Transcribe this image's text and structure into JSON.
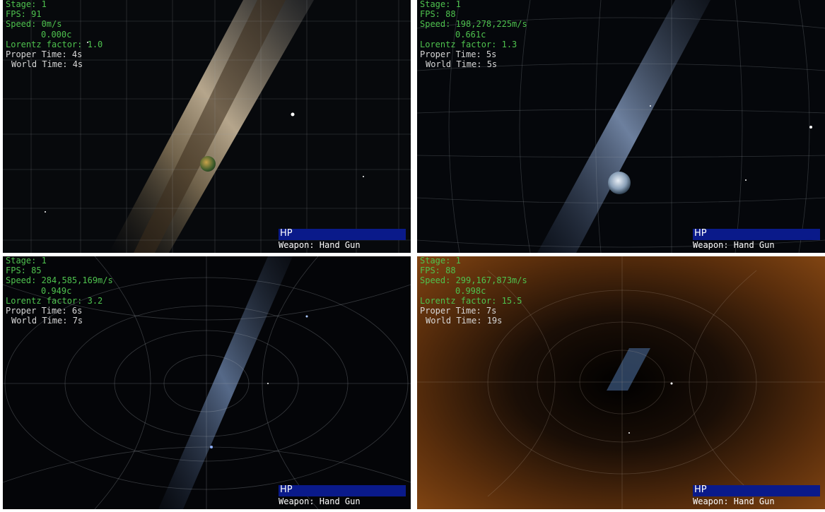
{
  "panels": [
    {
      "stage": "Stage: 1",
      "fps": "FPS: 91",
      "speed": "Speed: 0m/s",
      "speed_c": "0.000c",
      "lorentz": "Lorentz factor: 1.0",
      "proper_time": "Proper Time: 4s",
      "world_time": "World Time: 4s",
      "hp_label": "HP",
      "weapon": "Weapon: Hand Gun"
    },
    {
      "stage": "Stage: 1",
      "fps": "FPS: 88",
      "speed": "Speed: 198,278,225m/s",
      "speed_c": "0.661c",
      "lorentz": "Lorentz factor: 1.3",
      "proper_time": "Proper Time: 5s",
      "world_time": "World Time: 5s",
      "hp_label": "HP",
      "weapon": "Weapon: Hand Gun"
    },
    {
      "stage": "Stage: 1",
      "fps": "FPS: 85",
      "speed": "Speed: 284,585,169m/s",
      "speed_c": "0.949c",
      "lorentz": "Lorentz factor: 3.2",
      "proper_time": "Proper Time: 6s",
      "world_time": "World Time: 7s",
      "hp_label": "HP",
      "weapon": "Weapon: Hand Gun"
    },
    {
      "stage": "Stage: 1",
      "fps": "FPS: 88",
      "speed": "Speed: 299,167,873m/s",
      "speed_c": "0.998c",
      "lorentz": "Lorentz factor: 15.5",
      "proper_time": "Proper Time: 7s",
      "world_time": "World Time: 19s",
      "hp_label": "HP",
      "weapon": "Weapon: Hand Gun"
    }
  ],
  "colors": {
    "hud_green": "#4ec24e",
    "hud_white": "#d8d8d8",
    "hp_bar": "#0a1a8a"
  }
}
